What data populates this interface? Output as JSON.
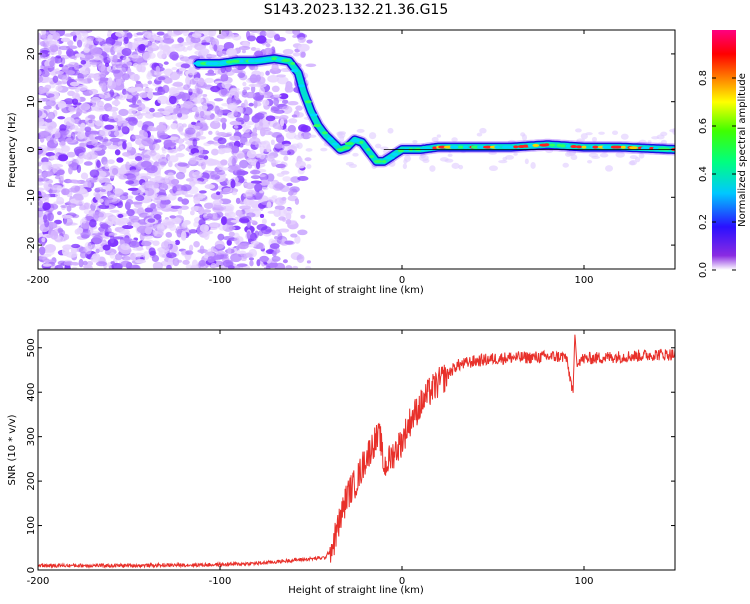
{
  "figure_title": "S143.2023.132.21.36.G15",
  "colors": {
    "snr_line": "#e8302a",
    "noise_speckle": "#7a2bff",
    "trace_core": "#e8202a",
    "trace_mid": "#00e0d0",
    "trace_outer": "#1a10e0",
    "axis": "#000000"
  },
  "chart_data": [
    {
      "type": "heatmap",
      "xlabel": "Height of straight line (km)",
      "ylabel": "Frequency (Hz)",
      "xlim": [
        -200,
        150
      ],
      "ylim": [
        -25,
        25
      ],
      "x_ticks": [
        -200,
        -100,
        0,
        100
      ],
      "y_ticks": [
        -20,
        -10,
        0,
        10,
        20
      ],
      "grid": false,
      "colorbar": {
        "label": "Normalized spectral amplitude",
        "range": [
          0.0,
          1.0
        ],
        "ticks": [
          0.0,
          0.2,
          0.4,
          0.6,
          0.8
        ],
        "tick_labels": [
          "0.0",
          "0.2",
          "0.4",
          "0.6",
          "0.8"
        ],
        "colormap": "rainbow (violet → blue → cyan → green → yellow → red → magenta)"
      },
      "ridge": {
        "x": [
          -112,
          -100,
          -90,
          -80,
          -70,
          -62,
          -57,
          -54,
          -50,
          -46,
          -42,
          -38,
          -34,
          -30,
          -26,
          -22,
          -18,
          -14,
          -10,
          -6,
          0,
          10,
          20,
          40,
          60,
          80,
          100,
          120,
          150
        ],
        "y": [
          18,
          18,
          18.5,
          18.5,
          19,
          18.5,
          16,
          12,
          8,
          5,
          3,
          1.5,
          0,
          0.5,
          2,
          1.5,
          -0.5,
          -2.5,
          -2.5,
          -1.5,
          0,
          0,
          0.5,
          0.5,
          0.5,
          1,
          0.5,
          0.5,
          0
        ]
      }
    },
    {
      "type": "line",
      "xlabel": "Height of straight line (km)",
      "ylabel": "SNR (10 * v/v)",
      "xlim": [
        -200,
        150
      ],
      "ylim": [
        0,
        540
      ],
      "x_ticks": [
        -200,
        -100,
        0,
        100
      ],
      "y_ticks": [
        0,
        100,
        200,
        300,
        400,
        500
      ],
      "grid": false,
      "series": [
        {
          "x": [
            -200,
            -150,
            -100,
            -80,
            -70,
            -60,
            -50,
            -42,
            -38,
            -35,
            -30,
            -25,
            -20,
            -15,
            -12,
            -10,
            -5,
            0,
            5,
            10,
            15,
            20,
            25,
            30,
            40,
            50,
            60,
            70,
            80,
            90,
            94,
            95,
            96,
            100,
            110,
            120,
            130,
            140,
            150
          ],
          "y": [
            10,
            10,
            12,
            15,
            18,
            22,
            25,
            28,
            55,
            100,
            170,
            200,
            250,
            290,
            300,
            230,
            260,
            290,
            340,
            370,
            400,
            420,
            440,
            460,
            470,
            475,
            478,
            478,
            480,
            480,
            400,
            530,
            470,
            475,
            478,
            480,
            482,
            485,
            485
          ]
        }
      ]
    }
  ]
}
